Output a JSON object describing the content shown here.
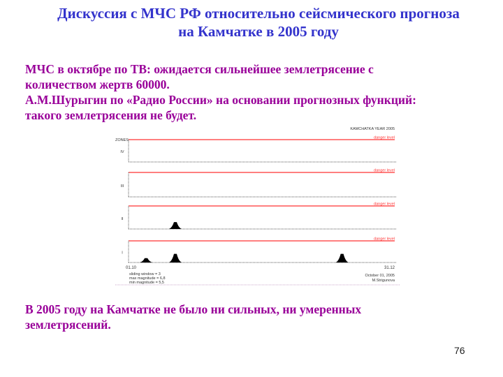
{
  "slide": {
    "title_line1": "Дискуссия с МЧС РФ относительно сейсмического прогноза",
    "title_line2": "на Камчатке в 2005 году",
    "para1_line1": "МЧС в октябре по ТВ:  ожидается сильнейшее землетрясение с",
    "para1_line2": "количеством жертв 60000.",
    "para2_line1": "А.М.Шурыгин по «Радио России» на основании прогнозных функций:",
    "para2_line2": "такого землетрясения не будет.",
    "conclusion_line1": "В 2005 году на Камчатке не было ни сильных, ни умеренных",
    "conclusion_line2": "землетрясений.",
    "page_number": "76"
  },
  "colors": {
    "title": "#3333cc",
    "body": "#990099",
    "danger": "#ff3333"
  },
  "chart_data": {
    "type": "area",
    "title": "KAMCHATKA  YEAR 2005",
    "ylabel": "ZONES",
    "danger_label": "danger level",
    "x_start": "01.10",
    "x_end": "31.12",
    "panels": [
      {
        "zone": "IV",
        "peaks": []
      },
      {
        "zone": "III",
        "peaks": []
      },
      {
        "zone": "II",
        "peaks": [
          {
            "date": "17.10",
            "level": 0.3
          }
        ]
      },
      {
        "zone": "I",
        "peaks": [
          {
            "date": "07.10",
            "level": 0.2
          },
          {
            "date": "17.10",
            "level": 0.4
          },
          {
            "date": "12.12",
            "level": 0.4
          }
        ]
      }
    ],
    "notes_left": [
      "sliding  window = 3",
      "max  magnitude = 6,8",
      "min  magnitude = 5,5"
    ],
    "notes_right": [
      "October 01, 2005",
      "M.Strigunova"
    ]
  }
}
